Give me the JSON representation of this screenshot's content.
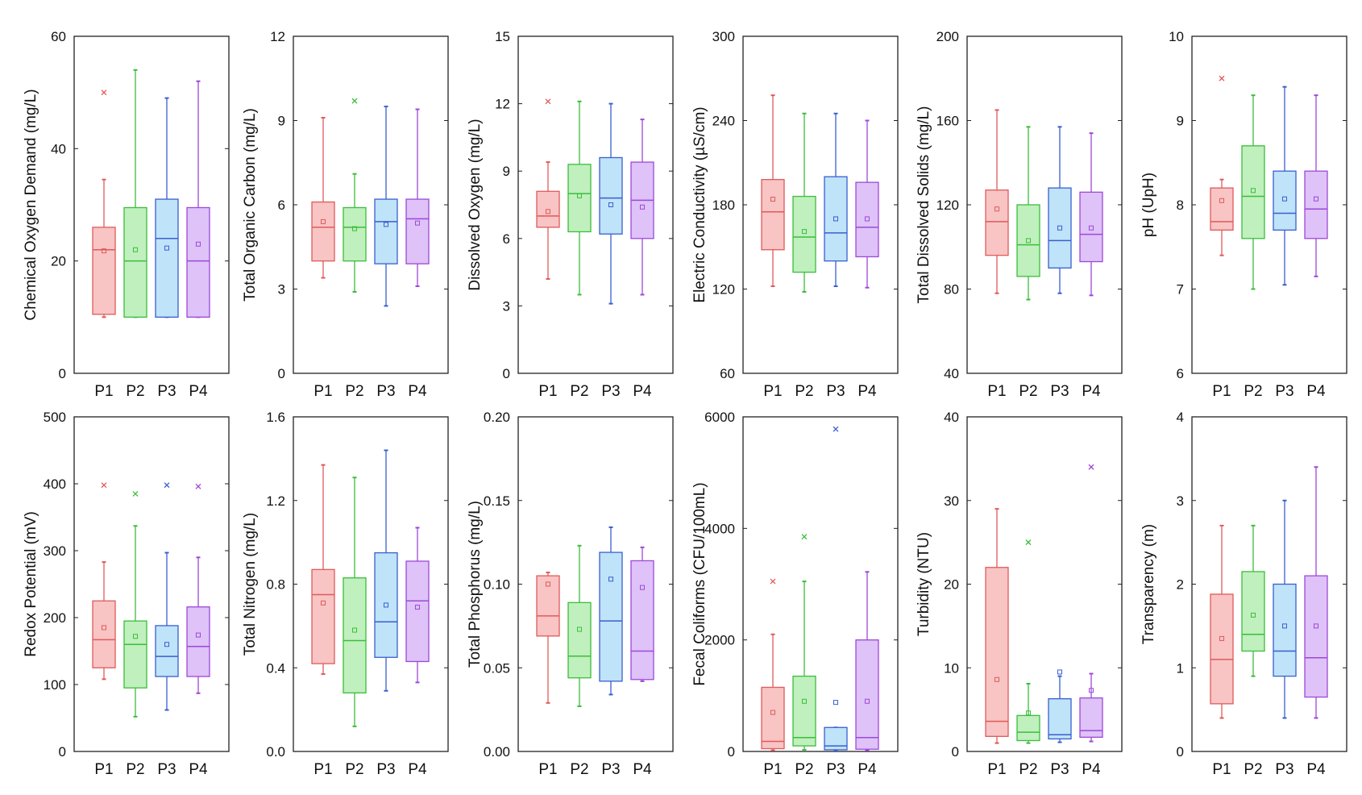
{
  "figure": {
    "colors": {
      "P1": {
        "stroke": "#e05a5a",
        "fill": "#f8c4c4"
      },
      "P2": {
        "stroke": "#3cbd3c",
        "fill": "#bff0bd"
      },
      "P3": {
        "stroke": "#3a5fd0",
        "fill": "#bfe3f8"
      },
      "P4": {
        "stroke": "#9e48d8",
        "fill": "#dec2f8"
      }
    }
  },
  "chart_data": [
    {
      "type": "box",
      "ylabel": "Chemical Oxygen Demand (mg/L)",
      "ylim": [
        0,
        60
      ],
      "yticks": [
        0,
        20,
        40,
        60
      ],
      "tick_labels": [
        "0",
        "20",
        "40",
        "60"
      ],
      "categories": [
        "P1",
        "P2",
        "P3",
        "P4"
      ],
      "boxes": [
        {
          "min": 10,
          "q1": 10.5,
          "median": 22,
          "q3": 26,
          "max": 34.5,
          "mean": 21.8,
          "outliers": [
            50
          ]
        },
        {
          "min": 10,
          "q1": 10,
          "median": 20,
          "q3": 29.5,
          "max": 54,
          "mean": 22,
          "outliers": []
        },
        {
          "min": 10,
          "q1": 10,
          "median": 24,
          "q3": 31,
          "max": 49,
          "mean": 22.3,
          "outliers": []
        },
        {
          "min": 10,
          "q1": 10,
          "median": 20,
          "q3": 29.5,
          "max": 52,
          "mean": 23,
          "outliers": []
        }
      ]
    },
    {
      "type": "box",
      "ylabel": "Total Organic Carbon (mg/L)",
      "ylim": [
        0,
        12
      ],
      "yticks": [
        0,
        3,
        6,
        9,
        12
      ],
      "tick_labels": [
        "0",
        "3",
        "6",
        "9",
        "12"
      ],
      "categories": [
        "P1",
        "P2",
        "P3",
        "P4"
      ],
      "boxes": [
        {
          "min": 3.4,
          "q1": 4,
          "median": 5.2,
          "q3": 6.1,
          "max": 9.1,
          "mean": 5.4,
          "outliers": []
        },
        {
          "min": 2.9,
          "q1": 4,
          "median": 5.2,
          "q3": 5.9,
          "max": 7.1,
          "mean": 5.15,
          "outliers": [
            9.7
          ]
        },
        {
          "min": 2.4,
          "q1": 3.9,
          "median": 5.4,
          "q3": 6.2,
          "max": 9.5,
          "mean": 5.3,
          "outliers": []
        },
        {
          "min": 3.1,
          "q1": 3.9,
          "median": 5.5,
          "q3": 6.2,
          "max": 9.4,
          "mean": 5.35,
          "outliers": []
        }
      ]
    },
    {
      "type": "box",
      "ylabel": "Dissolved Oxygen (mg/L)",
      "ylim": [
        0,
        15
      ],
      "yticks": [
        0,
        3,
        6,
        9,
        12,
        15
      ],
      "tick_labels": [
        "0",
        "3",
        "6",
        "9",
        "12",
        "15"
      ],
      "categories": [
        "P1",
        "P2",
        "P3",
        "P4"
      ],
      "boxes": [
        {
          "min": 4.2,
          "q1": 6.5,
          "median": 7,
          "q3": 8.1,
          "max": 9.4,
          "mean": 7.2,
          "outliers": [
            12.1
          ]
        },
        {
          "min": 3.5,
          "q1": 6.3,
          "median": 8,
          "q3": 9.3,
          "max": 12.1,
          "mean": 7.9,
          "outliers": []
        },
        {
          "min": 3.1,
          "q1": 6.2,
          "median": 7.8,
          "q3": 9.6,
          "max": 12,
          "mean": 7.5,
          "outliers": []
        },
        {
          "min": 3.5,
          "q1": 6,
          "median": 7.7,
          "q3": 9.4,
          "max": 11.3,
          "mean": 7.4,
          "outliers": []
        }
      ]
    },
    {
      "type": "box",
      "ylabel": "Electric Conductivity (µS/cm)",
      "ylim": [
        60,
        300
      ],
      "yticks": [
        60,
        120,
        180,
        240,
        300
      ],
      "tick_labels": [
        "60",
        "120",
        "180",
        "240",
        "300"
      ],
      "categories": [
        "P1",
        "P2",
        "P3",
        "P4"
      ],
      "boxes": [
        {
          "min": 122,
          "q1": 148,
          "median": 175,
          "q3": 198,
          "max": 258,
          "mean": 184,
          "outliers": []
        },
        {
          "min": 118,
          "q1": 132,
          "median": 157,
          "q3": 186,
          "max": 245,
          "mean": 161,
          "outliers": []
        },
        {
          "min": 122,
          "q1": 140,
          "median": 160,
          "q3": 200,
          "max": 245,
          "mean": 170,
          "outliers": []
        },
        {
          "min": 121,
          "q1": 143,
          "median": 164,
          "q3": 196,
          "max": 240,
          "mean": 170,
          "outliers": []
        }
      ]
    },
    {
      "type": "box",
      "ylabel": "Total Dissolved Solids (mg/L)",
      "ylim": [
        40,
        200
      ],
      "yticks": [
        40,
        80,
        120,
        160,
        200
      ],
      "tick_labels": [
        "40",
        "80",
        "120",
        "160",
        "200"
      ],
      "categories": [
        "P1",
        "P2",
        "P3",
        "P4"
      ],
      "boxes": [
        {
          "min": 78,
          "q1": 96,
          "median": 112,
          "q3": 127,
          "max": 165,
          "mean": 118,
          "outliers": []
        },
        {
          "min": 75,
          "q1": 86,
          "median": 101,
          "q3": 120,
          "max": 157,
          "mean": 103,
          "outliers": []
        },
        {
          "min": 78,
          "q1": 90,
          "median": 103,
          "q3": 128,
          "max": 157,
          "mean": 109,
          "outliers": []
        },
        {
          "min": 77,
          "q1": 93,
          "median": 106,
          "q3": 126,
          "max": 154,
          "mean": 109,
          "outliers": []
        }
      ]
    },
    {
      "type": "box",
      "ylabel": "pH (UpH)",
      "ylim": [
        6,
        10
      ],
      "yticks": [
        6,
        7,
        8,
        9,
        10
      ],
      "tick_labels": [
        "6",
        "7",
        "8",
        "9",
        "10"
      ],
      "categories": [
        "P1",
        "P2",
        "P3",
        "P4"
      ],
      "boxes": [
        {
          "min": 7.4,
          "q1": 7.7,
          "median": 7.8,
          "q3": 8.2,
          "max": 8.3,
          "mean": 8.05,
          "outliers": [
            9.5
          ]
        },
        {
          "min": 7,
          "q1": 7.6,
          "median": 8.1,
          "q3": 8.7,
          "max": 9.3,
          "mean": 8.17,
          "outliers": []
        },
        {
          "min": 7.05,
          "q1": 7.7,
          "median": 7.9,
          "q3": 8.4,
          "max": 9.4,
          "mean": 8.07,
          "outliers": []
        },
        {
          "min": 7.15,
          "q1": 7.6,
          "median": 7.95,
          "q3": 8.4,
          "max": 9.3,
          "mean": 8.07,
          "outliers": []
        }
      ]
    },
    {
      "type": "box",
      "ylabel": "Redox Potential (mV)",
      "ylim": [
        0,
        500
      ],
      "yticks": [
        0,
        100,
        200,
        300,
        400,
        500
      ],
      "tick_labels": [
        "0",
        "100",
        "200",
        "300",
        "400",
        "500"
      ],
      "categories": [
        "P1",
        "P2",
        "P3",
        "P4"
      ],
      "boxes": [
        {
          "min": 108,
          "q1": 125,
          "median": 167,
          "q3": 225,
          "max": 283,
          "mean": 185,
          "outliers": [
            398
          ]
        },
        {
          "min": 52,
          "q1": 95,
          "median": 160,
          "q3": 195,
          "max": 337,
          "mean": 172,
          "outliers": [
            385
          ]
        },
        {
          "min": 62,
          "q1": 112,
          "median": 142,
          "q3": 188,
          "max": 297,
          "mean": 160,
          "outliers": [
            398
          ]
        },
        {
          "min": 87,
          "q1": 112,
          "median": 157,
          "q3": 216,
          "max": 290,
          "mean": 174,
          "outliers": [
            396
          ]
        }
      ]
    },
    {
      "type": "box",
      "ylabel": "Total Nitrogen (mg/L)",
      "ylim": [
        0,
        1.6
      ],
      "yticks": [
        0,
        0.4,
        0.8,
        1.2,
        1.6
      ],
      "tick_labels": [
        "0.0",
        "0.4",
        "0.8",
        "1.2",
        "1.6"
      ],
      "categories": [
        "P1",
        "P2",
        "P3",
        "P4"
      ],
      "boxes": [
        {
          "min": 0.37,
          "q1": 0.42,
          "median": 0.75,
          "q3": 0.87,
          "max": 1.37,
          "mean": 0.71,
          "outliers": []
        },
        {
          "min": 0.12,
          "q1": 0.28,
          "median": 0.53,
          "q3": 0.83,
          "max": 1.31,
          "mean": 0.58,
          "outliers": []
        },
        {
          "min": 0.29,
          "q1": 0.45,
          "median": 0.62,
          "q3": 0.95,
          "max": 1.44,
          "mean": 0.7,
          "outliers": []
        },
        {
          "min": 0.33,
          "q1": 0.43,
          "median": 0.72,
          "q3": 0.91,
          "max": 1.07,
          "mean": 0.69,
          "outliers": []
        }
      ]
    },
    {
      "type": "box",
      "ylabel": "Total Phosphorus (mg/L)",
      "ylim": [
        0,
        0.2
      ],
      "yticks": [
        0,
        0.05,
        0.1,
        0.15,
        0.2
      ],
      "tick_labels": [
        "0.00",
        "0.05",
        "0.10",
        "0.15",
        "0.20"
      ],
      "categories": [
        "P1",
        "P2",
        "P3",
        "P4"
      ],
      "boxes": [
        {
          "min": 0.029,
          "q1": 0.069,
          "median": 0.081,
          "q3": 0.105,
          "max": 0.107,
          "mean": 0.1,
          "outliers": []
        },
        {
          "min": 0.027,
          "q1": 0.044,
          "median": 0.057,
          "q3": 0.089,
          "max": 0.123,
          "mean": 0.073,
          "outliers": []
        },
        {
          "min": 0.034,
          "q1": 0.042,
          "median": 0.078,
          "q3": 0.119,
          "max": 0.134,
          "mean": 0.103,
          "outliers": []
        },
        {
          "min": 0.042,
          "q1": 0.043,
          "median": 0.06,
          "q3": 0.114,
          "max": 0.122,
          "mean": 0.098,
          "outliers": []
        }
      ]
    },
    {
      "type": "box",
      "ylabel": "Fecal Coliforms (CFU/100mL)",
      "ylim": [
        0,
        6000
      ],
      "yticks": [
        0,
        2000,
        4000,
        6000
      ],
      "tick_labels": [
        "0",
        "2000",
        "4000",
        "6000"
      ],
      "categories": [
        "P1",
        "P2",
        "P3",
        "P4"
      ],
      "boxes": [
        {
          "min": 20,
          "q1": 50,
          "median": 180,
          "q3": 1150,
          "max": 2100,
          "mean": 700,
          "outliers": [
            3050
          ]
        },
        {
          "min": 30,
          "q1": 100,
          "median": 250,
          "q3": 1350,
          "max": 3050,
          "mean": 900,
          "outliers": [
            3850
          ]
        },
        {
          "min": 15,
          "q1": 30,
          "median": 100,
          "q3": 430,
          "max": 430,
          "mean": 880,
          "outliers": [
            5780
          ]
        },
        {
          "min": 20,
          "q1": 40,
          "median": 250,
          "q3": 2000,
          "max": 3220,
          "mean": 900,
          "outliers": []
        }
      ]
    },
    {
      "type": "box",
      "ylabel": "Turbidity (NTU)",
      "ylim": [
        0,
        40
      ],
      "yticks": [
        0,
        10,
        20,
        30,
        40
      ],
      "tick_labels": [
        "0",
        "10",
        "20",
        "30",
        "40"
      ],
      "categories": [
        "P1",
        "P2",
        "P3",
        "P4"
      ],
      "boxes": [
        {
          "min": 1,
          "q1": 1.8,
          "median": 3.6,
          "q3": 22,
          "max": 29,
          "mean": 8.6,
          "outliers": []
        },
        {
          "min": 1,
          "q1": 1.3,
          "median": 2.3,
          "q3": 4.3,
          "max": 8.1,
          "mean": 4.6,
          "outliers": [
            25
          ]
        },
        {
          "min": 1.1,
          "q1": 1.5,
          "median": 2,
          "q3": 6.3,
          "max": 9,
          "mean": 9.5,
          "outliers": []
        },
        {
          "min": 1.2,
          "q1": 1.7,
          "median": 2.5,
          "q3": 6.4,
          "max": 9.3,
          "mean": 7.3,
          "outliers": [
            34
          ]
        }
      ]
    },
    {
      "type": "box",
      "ylabel": "Transparency (m)",
      "ylim": [
        0,
        4
      ],
      "yticks": [
        0,
        1,
        2,
        3,
        4
      ],
      "tick_labels": [
        "0",
        "1",
        "2",
        "3",
        "4"
      ],
      "categories": [
        "P1",
        "P2",
        "P3",
        "P4"
      ],
      "boxes": [
        {
          "min": 0.4,
          "q1": 0.57,
          "median": 1.1,
          "q3": 1.88,
          "max": 2.7,
          "mean": 1.35,
          "outliers": []
        },
        {
          "min": 0.9,
          "q1": 1.2,
          "median": 1.4,
          "q3": 2.15,
          "max": 2.7,
          "mean": 1.63,
          "outliers": []
        },
        {
          "min": 0.4,
          "q1": 0.9,
          "median": 1.2,
          "q3": 2,
          "max": 3,
          "mean": 1.5,
          "outliers": []
        },
        {
          "min": 0.4,
          "q1": 0.65,
          "median": 1.12,
          "q3": 2.1,
          "max": 3.4,
          "mean": 1.5,
          "outliers": []
        }
      ]
    }
  ]
}
